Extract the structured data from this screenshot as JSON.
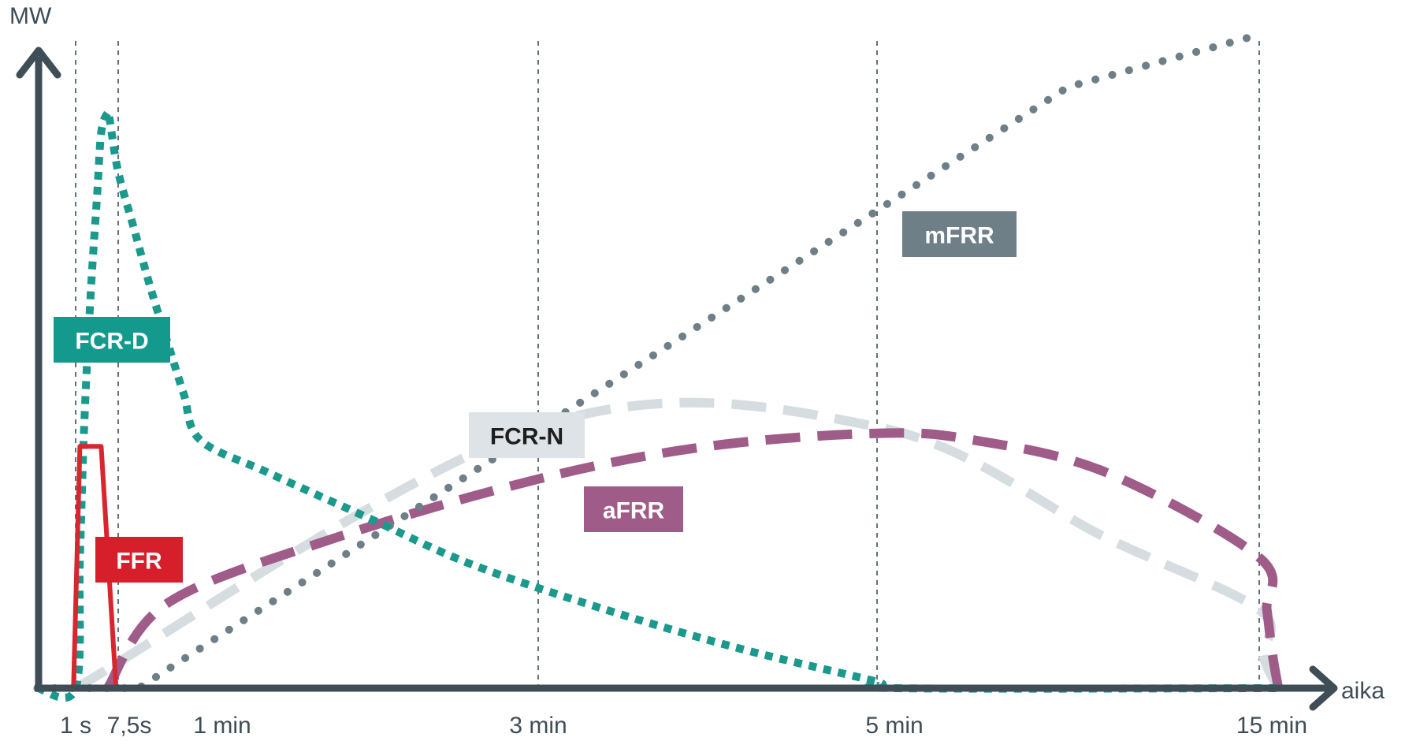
{
  "chart_data": {
    "type": "line",
    "ylabel": "MW",
    "xlabel": "aika",
    "x_tick_labels": [
      "1 s",
      "7,5s",
      "1 min",
      "3 min",
      "5 min",
      "15 min"
    ],
    "x_scale": "nonlinear",
    "grid": "vertical dashed lines at 1 s, 7,5s, 3 min, 5 min, 15 min",
    "legend": "inline labels",
    "series": [
      {
        "name": "FFR",
        "color": "#d7262e",
        "style": "solid",
        "points": [
          [
            -0.3,
            0
          ],
          [
            -0.05,
            0
          ],
          [
            0.1,
            0.37
          ],
          [
            0.6,
            0.37
          ],
          [
            0.95,
            0
          ],
          [
            5.5,
            0
          ]
        ]
      },
      {
        "name": "FCR-D",
        "color": "#1a998c",
        "style": "dotted-square",
        "points": [
          [
            -0.9,
            0
          ],
          [
            0,
            0
          ],
          [
            0.1,
            0.2
          ],
          [
            0.2,
            0.4
          ],
          [
            0.35,
            0.6
          ],
          [
            0.5,
            0.75
          ],
          [
            0.6,
            0.85
          ],
          [
            0.75,
            0.88
          ],
          [
            0.8,
            0.87
          ],
          [
            1.0,
            0.79
          ],
          [
            1.2,
            0.7
          ],
          [
            1.4,
            0.61
          ],
          [
            1.6,
            0.53
          ],
          [
            1.8,
            0.45
          ],
          [
            2.0,
            0.38
          ],
          [
            2.2,
            0.33
          ],
          [
            2.5,
            0.26
          ],
          [
            2.8,
            0.19
          ],
          [
            3.2,
            0.12
          ],
          [
            3.6,
            0.06
          ],
          [
            4.0,
            0.01
          ],
          [
            4.05,
            0.0
          ],
          [
            5.5,
            0.0
          ]
        ]
      },
      {
        "name": "FCR-N",
        "color": "#d6dde1",
        "style": "dashed",
        "points": [
          [
            0,
            0
          ],
          [
            3.0,
            0.4
          ],
          [
            4.0,
            0.4
          ],
          [
            4.6,
            0.23
          ],
          [
            5.0,
            0.12
          ],
          [
            5.1,
            0.05
          ],
          [
            5.5,
            0.0
          ]
        ]
      },
      {
        "name": "aFRR",
        "color": "#a05c89",
        "style": "dashed",
        "points": [
          [
            0.75,
            0
          ],
          [
            1.6,
            0.13
          ],
          [
            2.4,
            0.23
          ],
          [
            3.0,
            0.32
          ],
          [
            3.5,
            0.37
          ],
          [
            4.0,
            0.39
          ],
          [
            4.25,
            0.38
          ],
          [
            4.6,
            0.33
          ],
          [
            5.0,
            0.2
          ],
          [
            5.2,
            0.12
          ],
          [
            5.35,
            0.05
          ],
          [
            5.5,
            0.0
          ]
        ]
      },
      {
        "name": "mFRR",
        "color": "#6e7f88",
        "style": "dotted-round",
        "points": [
          [
            -0.9,
            0
          ],
          [
            1.25,
            0
          ],
          [
            4.5,
            0.92
          ],
          [
            5.0,
            1.0
          ]
        ]
      }
    ],
    "labels": [
      {
        "text": "FCR-D",
        "series": "FCR-D",
        "bg": "#139a8c",
        "fg": "#ffffff"
      },
      {
        "text": "FFR",
        "series": "FFR",
        "bg": "#d61f2b",
        "fg": "#ffffff"
      },
      {
        "text": "FCR-N",
        "series": "FCR-N",
        "bg": "#dde3e6",
        "fg": "#1e1e1e"
      },
      {
        "text": "aFRR",
        "series": "aFRR",
        "bg": "#a05c89",
        "fg": "#ffffff"
      },
      {
        "text": "mFRR",
        "series": "mFRR",
        "bg": "#6f7f88",
        "fg": "#ffffff"
      }
    ],
    "axis_color": "#3f4d57",
    "gridline_color": "#3f4d57"
  }
}
